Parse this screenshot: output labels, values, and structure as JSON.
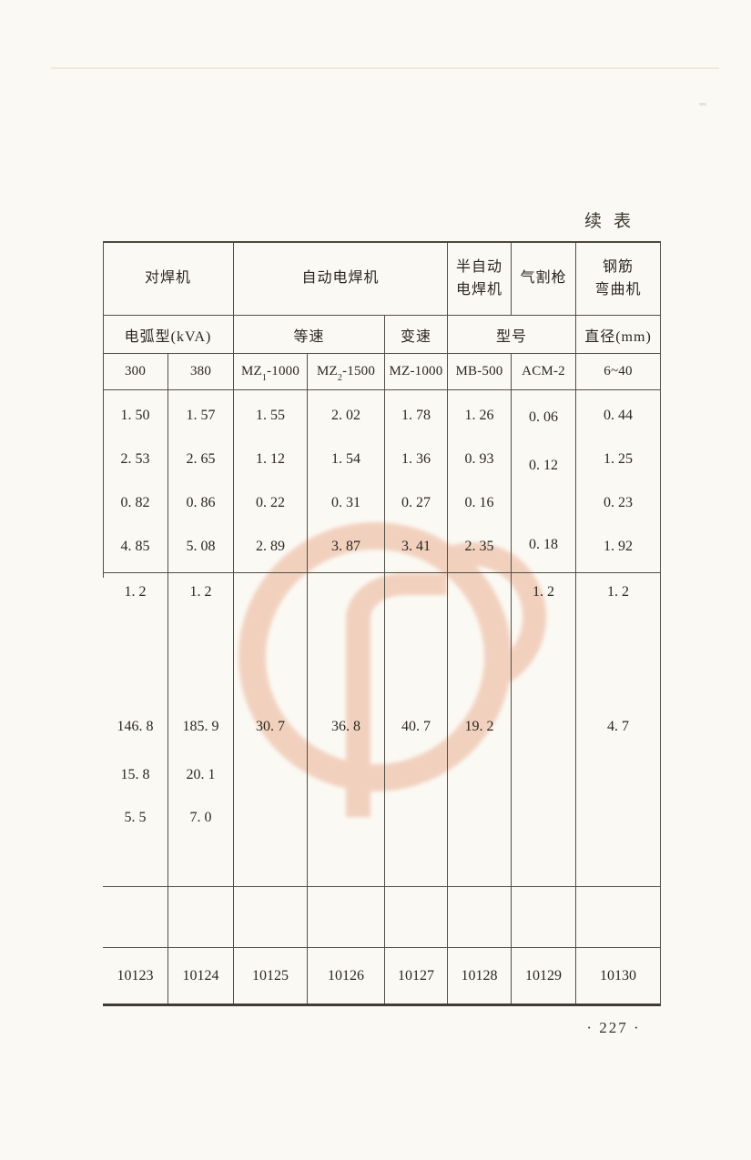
{
  "page": {
    "continued_label": "续表",
    "page_number": "· 227 ·"
  },
  "table": {
    "header_row1": [
      "对焊机",
      "自动电焊机",
      "半自动\n电焊机",
      "气割枪",
      "钢筋\n弯曲机"
    ],
    "header_row2": [
      "电弧型(kVA)",
      "等速",
      "变速",
      "型号",
      "直径(mm)"
    ],
    "models": [
      {
        "pre": "300",
        "sub": "",
        "post": ""
      },
      {
        "pre": "380",
        "sub": "",
        "post": ""
      },
      {
        "pre": "MZ",
        "sub": "1",
        "post": "-1000"
      },
      {
        "pre": "MZ",
        "sub": "2",
        "post": "-1500"
      },
      {
        "pre": "MZ-1000",
        "sub": "",
        "post": ""
      },
      {
        "pre": "MB-500",
        "sub": "",
        "post": ""
      },
      {
        "pre": "ACM-2",
        "sub": "",
        "post": ""
      },
      {
        "pre": "6~40",
        "sub": "",
        "post": ""
      }
    ],
    "band_a": [
      [
        "1. 50",
        "1. 57",
        "1. 55",
        "2. 02",
        "1. 78",
        "1. 26",
        "0. 06",
        "0. 44"
      ],
      [
        "2. 53",
        "2. 65",
        "1. 12",
        "1. 54",
        "1. 36",
        "0. 93",
        "0. 12",
        "1. 25"
      ],
      [
        "0. 82",
        "0. 86",
        "0. 22",
        "0. 31",
        "0. 27",
        "0. 16",
        "",
        "0. 23"
      ],
      [
        "4. 85",
        "5. 08",
        "2. 89",
        "3. 87",
        "3. 41",
        "2. 35",
        "0. 18",
        "1. 92"
      ]
    ],
    "band_b": [
      [
        "1. 2",
        "1. 2",
        "",
        "",
        "",
        "",
        "1. 2",
        "1. 2"
      ],
      [
        "146. 8",
        "185. 9",
        "30. 7",
        "36. 8",
        "40. 7",
        "19. 2",
        "",
        "4. 7"
      ],
      [
        "15. 8",
        "20. 1",
        "",
        "",
        "",
        "",
        "",
        ""
      ],
      [
        "5. 5",
        "7. 0",
        "",
        "",
        "",
        "",
        "",
        ""
      ]
    ],
    "band_d": [
      "10123",
      "10124",
      "10125",
      "10126",
      "10127",
      "10128",
      "10129",
      "10130"
    ]
  }
}
